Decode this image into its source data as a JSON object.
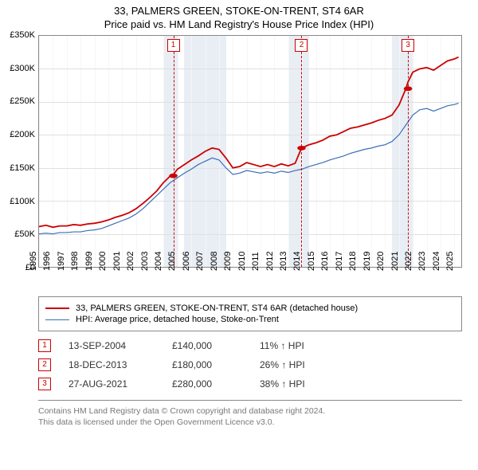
{
  "title": {
    "line1": "33, PALMERS GREEN, STOKE-ON-TRENT, ST4 6AR",
    "line2": "Price paid vs. HM Land Registry's House Price Index (HPI)"
  },
  "chart": {
    "type": "line",
    "background_color": "#ffffff",
    "grid_color": "#e0e0e0",
    "border_color": "#888888",
    "shade_color": "#e8eef4",
    "marker_color": "#cc0000",
    "x_min": 1995,
    "x_max": 2025.5,
    "x_ticks": [
      1995,
      1996,
      1997,
      1998,
      1999,
      2000,
      2001,
      2002,
      2003,
      2004,
      2005,
      2006,
      2007,
      2008,
      2009,
      2010,
      2011,
      2012,
      2013,
      2014,
      2015,
      2016,
      2017,
      2018,
      2019,
      2020,
      2021,
      2022,
      2023,
      2024,
      2025
    ],
    "y_min": 0,
    "y_max": 350000,
    "y_step": 50000,
    "y_labels": [
      "£0",
      "£50K",
      "£100K",
      "£150K",
      "£200K",
      "£250K",
      "£300K",
      "£350K"
    ],
    "shaded_bands": [
      [
        2004.0,
        2005.0
      ],
      [
        2005.5,
        2008.5
      ],
      [
        2013.0,
        2014.5
      ],
      [
        2020.5,
        2022.0
      ]
    ],
    "markers": [
      {
        "num": "1",
        "x": 2004.7
      },
      {
        "num": "2",
        "x": 2013.96
      },
      {
        "num": "3",
        "x": 2021.65
      }
    ],
    "series": [
      {
        "name": "33, PALMERS GREEN, STOKE-ON-TRENT, ST4 6AR (detached house)",
        "color": "#cc0000",
        "width": 1.8,
        "points": [
          [
            1995.0,
            61000
          ],
          [
            1995.5,
            63000
          ],
          [
            1996.0,
            60000
          ],
          [
            1996.5,
            62000
          ],
          [
            1997.0,
            62000
          ],
          [
            1997.5,
            64000
          ],
          [
            1998.0,
            63000
          ],
          [
            1998.5,
            65000
          ],
          [
            1999.0,
            66000
          ],
          [
            1999.5,
            68000
          ],
          [
            2000.0,
            71000
          ],
          [
            2000.5,
            75000
          ],
          [
            2001.0,
            78000
          ],
          [
            2001.5,
            82000
          ],
          [
            2002.0,
            88000
          ],
          [
            2002.5,
            96000
          ],
          [
            2003.0,
            105000
          ],
          [
            2003.5,
            115000
          ],
          [
            2004.0,
            128000
          ],
          [
            2004.5,
            138000
          ],
          [
            2004.7,
            140000
          ],
          [
            2005.0,
            148000
          ],
          [
            2005.5,
            155000
          ],
          [
            2006.0,
            162000
          ],
          [
            2006.5,
            168000
          ],
          [
            2007.0,
            175000
          ],
          [
            2007.5,
            180000
          ],
          [
            2008.0,
            178000
          ],
          [
            2008.5,
            165000
          ],
          [
            2009.0,
            150000
          ],
          [
            2009.5,
            152000
          ],
          [
            2010.0,
            158000
          ],
          [
            2010.5,
            155000
          ],
          [
            2011.0,
            152000
          ],
          [
            2011.5,
            155000
          ],
          [
            2012.0,
            152000
          ],
          [
            2012.5,
            156000
          ],
          [
            2013.0,
            153000
          ],
          [
            2013.5,
            157000
          ],
          [
            2013.96,
            180000
          ],
          [
            2014.5,
            185000
          ],
          [
            2015.0,
            188000
          ],
          [
            2015.5,
            192000
          ],
          [
            2016.0,
            198000
          ],
          [
            2016.5,
            200000
          ],
          [
            2017.0,
            205000
          ],
          [
            2017.5,
            210000
          ],
          [
            2018.0,
            212000
          ],
          [
            2018.5,
            215000
          ],
          [
            2019.0,
            218000
          ],
          [
            2019.5,
            222000
          ],
          [
            2020.0,
            225000
          ],
          [
            2020.5,
            230000
          ],
          [
            2021.0,
            245000
          ],
          [
            2021.5,
            270000
          ],
          [
            2021.65,
            280000
          ],
          [
            2022.0,
            295000
          ],
          [
            2022.5,
            300000
          ],
          [
            2023.0,
            302000
          ],
          [
            2023.5,
            298000
          ],
          [
            2024.0,
            305000
          ],
          [
            2024.5,
            312000
          ],
          [
            2025.0,
            315000
          ],
          [
            2025.3,
            318000
          ]
        ]
      },
      {
        "name": "HPI: Average price, detached house, Stoke-on-Trent",
        "color": "#3a6fb7",
        "width": 1.2,
        "points": [
          [
            1995.0,
            50000
          ],
          [
            1995.5,
            51000
          ],
          [
            1996.0,
            50000
          ],
          [
            1996.5,
            52000
          ],
          [
            1997.0,
            52000
          ],
          [
            1997.5,
            53000
          ],
          [
            1998.0,
            53000
          ],
          [
            1998.5,
            55000
          ],
          [
            1999.0,
            56000
          ],
          [
            1999.5,
            58000
          ],
          [
            2000.0,
            62000
          ],
          [
            2000.5,
            66000
          ],
          [
            2001.0,
            70000
          ],
          [
            2001.5,
            74000
          ],
          [
            2002.0,
            80000
          ],
          [
            2002.5,
            88000
          ],
          [
            2003.0,
            98000
          ],
          [
            2003.5,
            108000
          ],
          [
            2004.0,
            118000
          ],
          [
            2004.5,
            128000
          ],
          [
            2005.0,
            135000
          ],
          [
            2005.5,
            142000
          ],
          [
            2006.0,
            148000
          ],
          [
            2006.5,
            155000
          ],
          [
            2007.0,
            160000
          ],
          [
            2007.5,
            165000
          ],
          [
            2008.0,
            162000
          ],
          [
            2008.5,
            150000
          ],
          [
            2009.0,
            140000
          ],
          [
            2009.5,
            142000
          ],
          [
            2010.0,
            146000
          ],
          [
            2010.5,
            144000
          ],
          [
            2011.0,
            142000
          ],
          [
            2011.5,
            144000
          ],
          [
            2012.0,
            142000
          ],
          [
            2012.5,
            145000
          ],
          [
            2013.0,
            143000
          ],
          [
            2013.5,
            146000
          ],
          [
            2014.0,
            148000
          ],
          [
            2014.5,
            152000
          ],
          [
            2015.0,
            155000
          ],
          [
            2015.5,
            158000
          ],
          [
            2016.0,
            162000
          ],
          [
            2016.5,
            165000
          ],
          [
            2017.0,
            168000
          ],
          [
            2017.5,
            172000
          ],
          [
            2018.0,
            175000
          ],
          [
            2018.5,
            178000
          ],
          [
            2019.0,
            180000
          ],
          [
            2019.5,
            183000
          ],
          [
            2020.0,
            185000
          ],
          [
            2020.5,
            190000
          ],
          [
            2021.0,
            200000
          ],
          [
            2021.5,
            215000
          ],
          [
            2022.0,
            230000
          ],
          [
            2022.5,
            238000
          ],
          [
            2023.0,
            240000
          ],
          [
            2023.5,
            236000
          ],
          [
            2024.0,
            240000
          ],
          [
            2024.5,
            244000
          ],
          [
            2025.0,
            246000
          ],
          [
            2025.3,
            248000
          ]
        ]
      }
    ]
  },
  "legend": {
    "row1": "33, PALMERS GREEN, STOKE-ON-TRENT, ST4 6AR (detached house)",
    "row2": "HPI: Average price, detached house, Stoke-on-Trent"
  },
  "sales": [
    {
      "num": "1",
      "date": "13-SEP-2004",
      "price": "£140,000",
      "delta": "11% ↑ HPI"
    },
    {
      "num": "2",
      "date": "18-DEC-2013",
      "price": "£180,000",
      "delta": "26% ↑ HPI"
    },
    {
      "num": "3",
      "date": "27-AUG-2021",
      "price": "£280,000",
      "delta": "38% ↑ HPI"
    }
  ],
  "footer": {
    "line1": "Contains HM Land Registry data © Crown copyright and database right 2024.",
    "line2": "This data is licensed under the Open Government Licence v3.0."
  }
}
